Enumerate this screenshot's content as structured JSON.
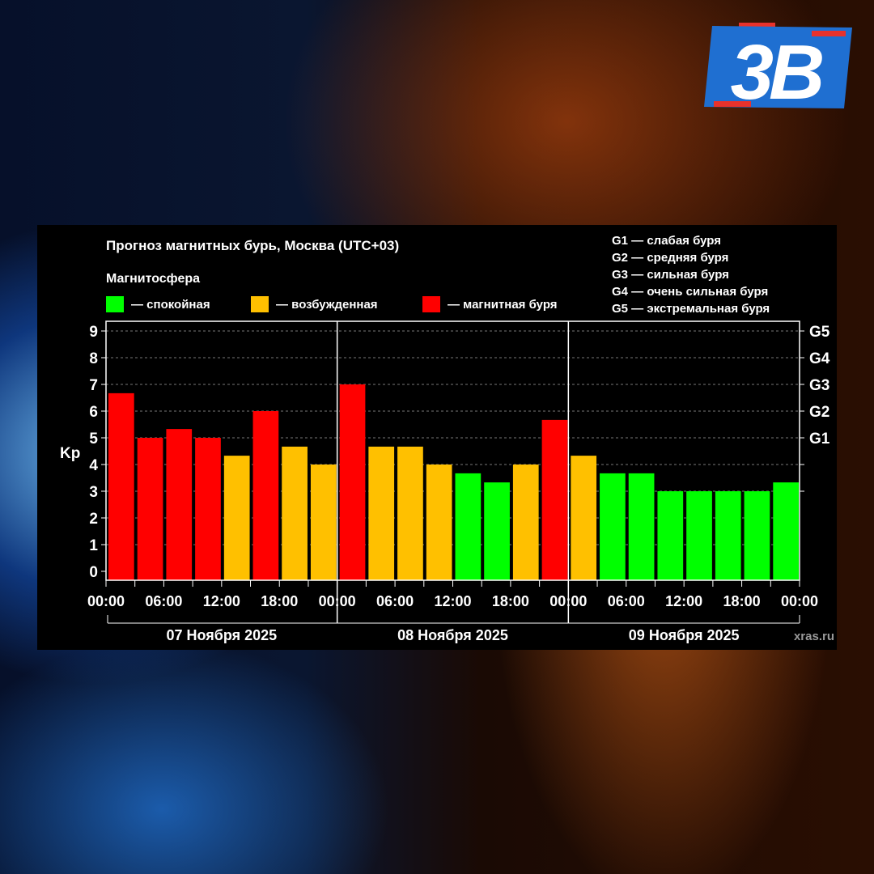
{
  "logo": {
    "text": "3В",
    "colors": {
      "blue": "#1f6fd1",
      "red": "#e8322c",
      "white": "#ffffff"
    }
  },
  "chart_data": {
    "type": "bar",
    "title": "Прогноз магнитных бурь, Москва (UTC+03)",
    "legend_title": "Магнитосфера",
    "legend": [
      {
        "label": "— спокойная",
        "color": "#00ff00"
      },
      {
        "label": "— возбужденная",
        "color": "#ffc000"
      },
      {
        "label": "— магнитная буря",
        "color": "#ff0000"
      }
    ],
    "g_legend": [
      "G1 — слабая буря",
      "G2 — средняя буря",
      "G3 — сильная буря",
      "G4 — очень сильная буря",
      "G5 — экстремальная буря"
    ],
    "ylabel": "Kp",
    "ylim": [
      0,
      9
    ],
    "yticks": [
      0,
      1,
      2,
      3,
      4,
      5,
      6,
      7,
      8,
      9
    ],
    "right_ticks": [
      {
        "value": 5,
        "label": "G1"
      },
      {
        "value": 6,
        "label": "G2"
      },
      {
        "value": 7,
        "label": "G3"
      },
      {
        "value": 8,
        "label": "G4"
      },
      {
        "value": 9,
        "label": "G5"
      }
    ],
    "grid": true,
    "xtick_labels": [
      "00:00",
      "06:00",
      "12:00",
      "18:00",
      "00:00",
      "06:00",
      "12:00",
      "18:00",
      "00:00",
      "06:00",
      "12:00",
      "18:00",
      "00:00"
    ],
    "days": [
      "07 Ноября 2025",
      "08 Ноября 2025",
      "09 Ноября 2025"
    ],
    "values": [
      6.67,
      5,
      5.33,
      5,
      4.33,
      6,
      4.67,
      4,
      7,
      4.67,
      4.67,
      4,
      3.67,
      3.33,
      4,
      5.67,
      4.33,
      3.67,
      3.67,
      3,
      3,
      3,
      3,
      3.33
    ],
    "source": "xras.ru"
  }
}
